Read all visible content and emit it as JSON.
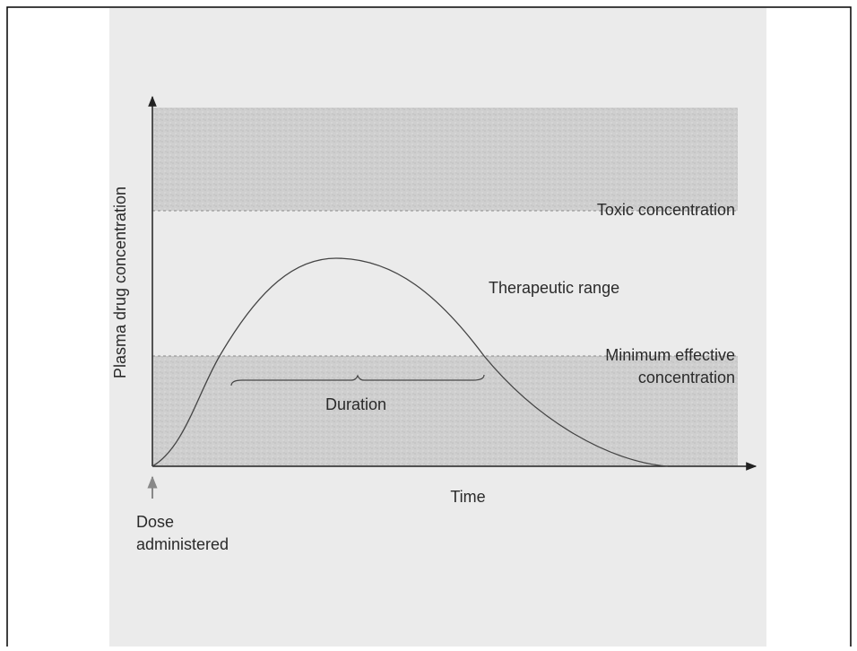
{
  "axes": {
    "y_label": "Plasma drug concentration",
    "x_label": "Time"
  },
  "regions": {
    "toxic": "Toxic concentration",
    "therapeutic": "Therapeutic range",
    "minimum": [
      "Minimum effective",
      "concentration"
    ]
  },
  "annotations": {
    "duration": "Duration",
    "dose": [
      "Dose",
      "administered"
    ]
  }
}
